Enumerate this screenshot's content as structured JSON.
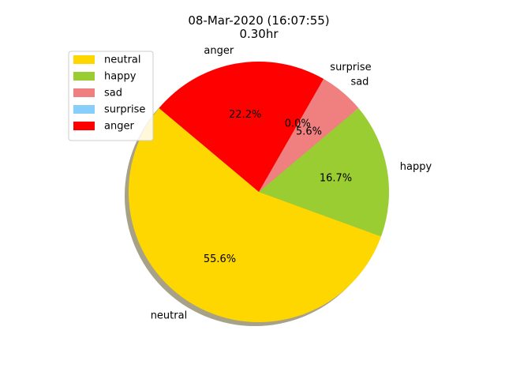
{
  "chart_data": {
    "type": "pie",
    "title": "08-Mar-2020 (16:07:55)",
    "subtitle": "0.30hr",
    "categories": [
      "neutral",
      "happy",
      "sad",
      "surprise",
      "anger"
    ],
    "values": [
      55.6,
      16.7,
      5.6,
      0.0,
      22.2
    ],
    "percent_labels": [
      "55.6%",
      "16.7%",
      "5.6%",
      "0.0%",
      "22.2%"
    ],
    "colors": [
      "#FFD700",
      "#9ACD32",
      "#F08080",
      "#87CEFA",
      "#FF0000"
    ],
    "start_angle_deg": 140,
    "shadow": true,
    "legend": {
      "placement": "upper-left",
      "entries": [
        "neutral",
        "happy",
        "sad",
        "surprise",
        "anger"
      ]
    }
  }
}
